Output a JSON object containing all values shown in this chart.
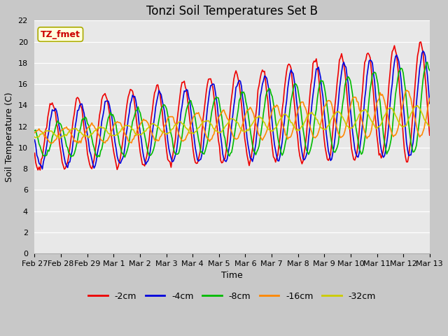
{
  "title": "Tonzi Soil Temperatures Set B",
  "xlabel": "Time",
  "ylabel": "Soil Temperature (C)",
  "ylim": [
    0,
    22
  ],
  "yticks": [
    0,
    2,
    4,
    6,
    8,
    10,
    12,
    14,
    16,
    18,
    20,
    22
  ],
  "annotation_text": "TZ_fmet",
  "annotation_color": "#cc0000",
  "annotation_bg": "#ffffdd",
  "annotation_edge": "#aaaa00",
  "series_colors": [
    "#ee0000",
    "#0000dd",
    "#00bb00",
    "#ff8800",
    "#cccc00"
  ],
  "series_labels": [
    "-2cm",
    "-4cm",
    "-8cm",
    "-16cm",
    "-32cm"
  ],
  "fig_facecolor": "#c8c8c8",
  "axes_facecolor": "#e8e8e8",
  "grid_color": "#ffffff",
  "x_tick_labels": [
    "Feb 27",
    "Feb 28",
    "Feb 29",
    "Mar 1",
    "Mar 2",
    "Mar 3",
    "Mar 4",
    "Mar 5",
    "Mar 6",
    "Mar 7",
    "Mar 8",
    "Mar 9",
    "Mar 10",
    "Mar 11",
    "Mar 12",
    "Mar 13"
  ],
  "num_points": 360,
  "title_fontsize": 12,
  "axis_fontsize": 9,
  "tick_fontsize": 8
}
